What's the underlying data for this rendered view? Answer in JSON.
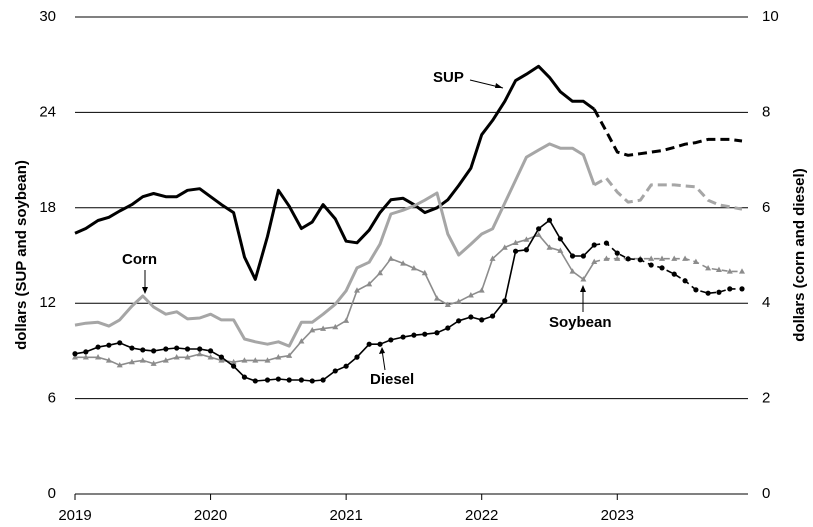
{
  "chart_data": {
    "type": "line",
    "x": [
      2019.0,
      2019.08,
      2019.17,
      2019.25,
      2019.33,
      2019.42,
      2019.5,
      2019.58,
      2019.67,
      2019.75,
      2019.83,
      2019.92,
      2020.0,
      2020.08,
      2020.17,
      2020.25,
      2020.33,
      2020.42,
      2020.5,
      2020.58,
      2020.67,
      2020.75,
      2020.83,
      2020.92,
      2021.0,
      2021.08,
      2021.17,
      2021.25,
      2021.33,
      2021.42,
      2021.5,
      2021.58,
      2021.67,
      2021.75,
      2021.83,
      2021.92,
      2022.0,
      2022.08,
      2022.17,
      2022.25,
      2022.33,
      2022.42,
      2022.5,
      2022.58,
      2022.67,
      2022.75,
      2022.83,
      2022.92,
      2023.0,
      2023.08,
      2023.17,
      2023.25,
      2023.33,
      2023.42,
      2023.5,
      2023.58,
      2023.67,
      2023.75,
      2023.83,
      2023.92
    ],
    "xlim": [
      2019,
      2023.92
    ],
    "xticks": [
      2019,
      2020,
      2021,
      2022,
      2023
    ],
    "ylim": [
      0,
      30
    ],
    "yticks": [
      0,
      6,
      12,
      18,
      24,
      30
    ],
    "y2lim": [
      0,
      10
    ],
    "y2ticks": [
      0,
      2,
      4,
      6,
      8,
      10
    ],
    "ylabel": "dollars (SUP and soybean)",
    "y2label": "dollars (corn and diesel)",
    "grid": true,
    "dashed_from": 2022.83,
    "annotations": [
      "SUP",
      "Corn",
      "Soybean",
      "Diesel"
    ],
    "series": [
      {
        "name": "SUP",
        "color": "#000000",
        "width": 3,
        "marker": "none",
        "values": [
          16.4,
          16.7,
          17.2,
          17.4,
          17.8,
          18.2,
          18.7,
          18.9,
          18.7,
          18.7,
          19.1,
          19.2,
          18.7,
          18.2,
          17.7,
          14.9,
          13.5,
          16.2,
          19.1,
          18.1,
          16.7,
          17.1,
          18.2,
          17.3,
          15.9,
          15.8,
          16.6,
          17.7,
          18.5,
          18.6,
          18.2,
          17.7,
          18.0,
          18.5,
          19.4,
          20.5,
          22.6,
          23.5,
          24.7,
          26.0,
          26.4,
          26.9,
          26.2,
          25.3,
          24.7,
          24.7,
          24.2,
          22.8,
          21.5,
          21.3,
          21.4,
          21.5,
          21.6,
          21.8,
          22.0,
          22.1,
          22.3,
          22.3,
          22.3,
          22.2
        ]
      },
      {
        "name": "Corn",
        "color": "#a6a6a6",
        "width": 3,
        "marker": "none",
        "axis": "y2",
        "values": [
          3.54,
          3.58,
          3.6,
          3.52,
          3.65,
          3.94,
          4.15,
          3.92,
          3.77,
          3.82,
          3.67,
          3.69,
          3.77,
          3.65,
          3.65,
          3.25,
          3.19,
          3.14,
          3.19,
          3.1,
          3.6,
          3.6,
          3.77,
          3.98,
          4.26,
          4.74,
          4.86,
          5.24,
          5.87,
          5.95,
          6.04,
          6.16,
          6.31,
          5.45,
          5.01,
          5.24,
          5.45,
          5.56,
          6.1,
          6.58,
          7.06,
          7.21,
          7.34,
          7.25,
          7.25,
          7.11,
          6.48,
          6.62,
          6.33,
          6.12,
          6.16,
          6.48,
          6.48,
          6.48,
          6.46,
          6.44,
          6.16,
          6.06,
          6.02,
          5.97
        ]
      },
      {
        "name": "Soybean",
        "color": "#8c8c8c",
        "width": 1.6,
        "marker": "triangle",
        "values": [
          8.6,
          8.6,
          8.6,
          8.4,
          8.1,
          8.3,
          8.4,
          8.2,
          8.4,
          8.6,
          8.6,
          8.8,
          8.6,
          8.4,
          8.3,
          8.4,
          8.4,
          8.4,
          8.6,
          8.7,
          9.6,
          10.3,
          10.4,
          10.5,
          10.9,
          12.8,
          13.2,
          13.9,
          14.8,
          14.5,
          14.2,
          13.9,
          12.3,
          11.9,
          12.1,
          12.5,
          12.8,
          14.8,
          15.5,
          15.8,
          16.0,
          16.3,
          15.5,
          15.3,
          14.0,
          13.5,
          14.6,
          14.8,
          14.8,
          14.8,
          14.8,
          14.8,
          14.8,
          14.8,
          14.8,
          14.6,
          14.2,
          14.1,
          14.0,
          14.0
        ]
      },
      {
        "name": "Diesel",
        "color": "#000000",
        "width": 1.6,
        "marker": "circle",
        "axis": "y2",
        "values": [
          2.94,
          2.98,
          3.08,
          3.12,
          3.17,
          3.06,
          3.02,
          3.0,
          3.04,
          3.06,
          3.04,
          3.04,
          3.0,
          2.87,
          2.68,
          2.45,
          2.37,
          2.39,
          2.41,
          2.39,
          2.39,
          2.37,
          2.39,
          2.58,
          2.68,
          2.87,
          3.14,
          3.14,
          3.23,
          3.29,
          3.33,
          3.35,
          3.38,
          3.48,
          3.63,
          3.71,
          3.65,
          3.73,
          4.05,
          5.09,
          5.12,
          5.56,
          5.74,
          5.35,
          4.99,
          4.99,
          5.22,
          5.26,
          5.05,
          4.93,
          4.91,
          4.8,
          4.74,
          4.61,
          4.47,
          4.28,
          4.21,
          4.23,
          4.3,
          4.3
        ]
      }
    ]
  }
}
